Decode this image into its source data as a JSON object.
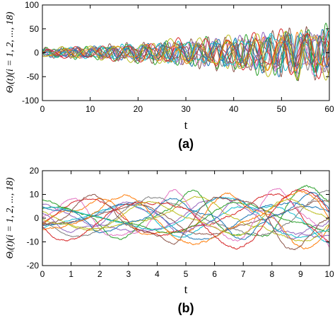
{
  "chart_data": [
    {
      "type": "line",
      "panel_label": "(a)",
      "xlabel": "t",
      "ylabel": "Θᵢ(t)(i = 1, 2, ..., 18)",
      "xlim": [
        0,
        60
      ],
      "ylim": [
        -100,
        100
      ],
      "x_ticks": [
        "0",
        "10",
        "20",
        "30",
        "40",
        "50",
        "60"
      ],
      "y_ticks": [
        "100",
        "50",
        "0",
        "-50",
        "-100"
      ],
      "n_series": 18,
      "amplitude_envelope": [
        [
          0,
          10
        ],
        [
          10,
          14
        ],
        [
          20,
          20
        ],
        [
          30,
          28
        ],
        [
          40,
          35
        ],
        [
          50,
          50
        ],
        [
          60,
          55
        ]
      ],
      "dominant_period": 4.5,
      "grid": false,
      "legend": "none"
    },
    {
      "type": "line",
      "panel_label": "(b)",
      "xlabel": "t",
      "ylabel": "Θᵢ(t)(i = 1, 2, ..., 18)",
      "xlim": [
        0,
        10
      ],
      "ylim": [
        -20,
        20
      ],
      "x_ticks": [
        "0",
        "1",
        "2",
        "3",
        "4",
        "5",
        "6",
        "7",
        "8",
        "9",
        "10"
      ],
      "y_ticks": [
        "20",
        "10",
        "0",
        "-10",
        "-20"
      ],
      "n_series": 18,
      "amplitude_envelope": [
        [
          0,
          8
        ],
        [
          5,
          11
        ],
        [
          10,
          14
        ]
      ],
      "dominant_period": 5,
      "grid": false,
      "legend": "none"
    }
  ],
  "series_colors": [
    "#9467bd",
    "#2ca02c",
    "#17becf",
    "#ff7f0e",
    "#d62728",
    "#1f77b4",
    "#bcbd22",
    "#8c564b",
    "#e377c2",
    "#7f7f7f",
    "#9467bd",
    "#2ca02c",
    "#17becf",
    "#ff7f0e",
    "#d62728",
    "#1f77b4",
    "#bcbd22",
    "#8c564b"
  ]
}
